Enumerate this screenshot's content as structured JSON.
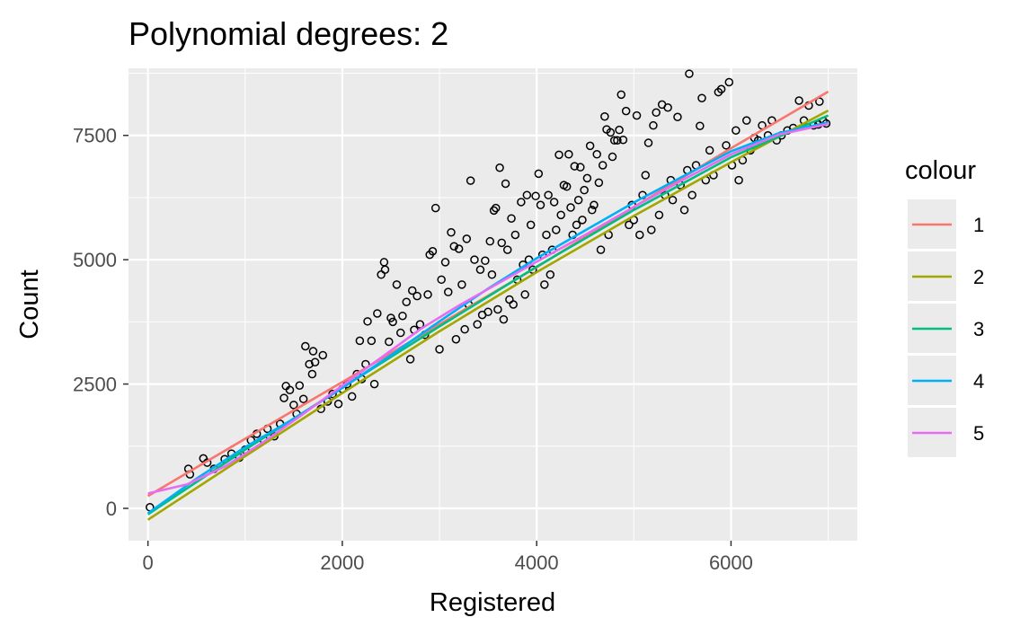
{
  "chart_data": {
    "type": "scatter",
    "title": "Polynomial degrees: 2",
    "xlabel": "Registered",
    "ylabel": "Count",
    "xlim": [
      -200,
      7300
    ],
    "ylim": [
      -650,
      8850
    ],
    "x_ticks": [
      0,
      2000,
      4000,
      6000
    ],
    "x_tick_labels": [
      "0",
      "2000",
      "4000",
      "6000"
    ],
    "y_ticks": [
      0,
      2500,
      5000,
      7500
    ],
    "y_tick_labels": [
      "0",
      "2500",
      "5000",
      "7500"
    ],
    "grid": true,
    "legend": {
      "title": "colour",
      "placement": "right"
    },
    "points": [
      [
        20,
        22
      ],
      [
        416,
        795
      ],
      [
        432,
        685
      ],
      [
        570,
        1005
      ],
      [
        610,
        920
      ],
      [
        680,
        795
      ],
      [
        790,
        990
      ],
      [
        860,
        1100
      ],
      [
        940,
        1020
      ],
      [
        1000,
        1180
      ],
      [
        1060,
        1370
      ],
      [
        1120,
        1500
      ],
      [
        1190,
        1380
      ],
      [
        1230,
        1600
      ],
      [
        1300,
        1450
      ],
      [
        1360,
        1700
      ],
      [
        1400,
        2220
      ],
      [
        1420,
        2460
      ],
      [
        1460,
        2380
      ],
      [
        1500,
        2080
      ],
      [
        1530,
        1900
      ],
      [
        1560,
        2470
      ],
      [
        1600,
        2200
      ],
      [
        1620,
        3260
      ],
      [
        1660,
        2900
      ],
      [
        1690,
        2700
      ],
      [
        1700,
        3160
      ],
      [
        1720,
        2940
      ],
      [
        1780,
        2000
      ],
      [
        1800,
        3080
      ],
      [
        1850,
        2150
      ],
      [
        1900,
        2300
      ],
      [
        1960,
        2100
      ],
      [
        2000,
        2400
      ],
      [
        2050,
        2500
      ],
      [
        2100,
        2250
      ],
      [
        2150,
        2700
      ],
      [
        2180,
        3370
      ],
      [
        2200,
        2600
      ],
      [
        2240,
        2900
      ],
      [
        2260,
        3760
      ],
      [
        2300,
        3370
      ],
      [
        2330,
        2500
      ],
      [
        2360,
        3920
      ],
      [
        2400,
        4700
      ],
      [
        2430,
        4950
      ],
      [
        2440,
        4800
      ],
      [
        2480,
        3350
      ],
      [
        2500,
        3830
      ],
      [
        2520,
        3750
      ],
      [
        2560,
        4500
      ],
      [
        2600,
        3530
      ],
      [
        2620,
        3870
      ],
      [
        2660,
        4150
      ],
      [
        2700,
        3000
      ],
      [
        2720,
        4380
      ],
      [
        2740,
        3590
      ],
      [
        2770,
        4270
      ],
      [
        2800,
        3700
      ],
      [
        2850,
        3490
      ],
      [
        2880,
        4300
      ],
      [
        2900,
        5100
      ],
      [
        2930,
        5170
      ],
      [
        2960,
        6040
      ],
      [
        3000,
        3200
      ],
      [
        3020,
        4600
      ],
      [
        3060,
        4950
      ],
      [
        3090,
        4350
      ],
      [
        3120,
        5550
      ],
      [
        3150,
        5270
      ],
      [
        3170,
        3400
      ],
      [
        3200,
        5220
      ],
      [
        3230,
        4500
      ],
      [
        3260,
        3600
      ],
      [
        3280,
        5420
      ],
      [
        3300,
        4100
      ],
      [
        3320,
        6590
      ],
      [
        3360,
        5000
      ],
      [
        3390,
        3700
      ],
      [
        3420,
        4800
      ],
      [
        3440,
        3890
      ],
      [
        3470,
        4980
      ],
      [
        3500,
        3950
      ],
      [
        3520,
        5370
      ],
      [
        3540,
        4700
      ],
      [
        3560,
        5990
      ],
      [
        3580,
        6040
      ],
      [
        3600,
        4000
      ],
      [
        3620,
        6850
      ],
      [
        3640,
        5340
      ],
      [
        3660,
        3800
      ],
      [
        3680,
        6530
      ],
      [
        3700,
        5200
      ],
      [
        3720,
        4200
      ],
      [
        3740,
        5830
      ],
      [
        3760,
        4100
      ],
      [
        3780,
        5500
      ],
      [
        3800,
        4600
      ],
      [
        3840,
        6160
      ],
      [
        3860,
        4900
      ],
      [
        3880,
        4300
      ],
      [
        3900,
        6300
      ],
      [
        3920,
        5000
      ],
      [
        3940,
        5700
      ],
      [
        3960,
        4800
      ],
      [
        3990,
        6280
      ],
      [
        4020,
        6730
      ],
      [
        4040,
        6100
      ],
      [
        4060,
        5100
      ],
      [
        4080,
        4500
      ],
      [
        4100,
        5500
      ],
      [
        4120,
        6300
      ],
      [
        4140,
        4700
      ],
      [
        4160,
        5200
      ],
      [
        4180,
        6160
      ],
      [
        4200,
        5600
      ],
      [
        4230,
        7110
      ],
      [
        4250,
        5900
      ],
      [
        4280,
        6500
      ],
      [
        4310,
        6470
      ],
      [
        4330,
        7120
      ],
      [
        4350,
        6050
      ],
      [
        4370,
        5500
      ],
      [
        4390,
        6880
      ],
      [
        4410,
        5700
      ],
      [
        4430,
        6200
      ],
      [
        4450,
        6860
      ],
      [
        4470,
        5800
      ],
      [
        4490,
        6400
      ],
      [
        4520,
        6640
      ],
      [
        4550,
        7290
      ],
      [
        4570,
        6000
      ],
      [
        4590,
        6100
      ],
      [
        4620,
        7120
      ],
      [
        4640,
        6550
      ],
      [
        4660,
        5200
      ],
      [
        4680,
        6900
      ],
      [
        4700,
        7880
      ],
      [
        4720,
        7620
      ],
      [
        4740,
        5500
      ],
      [
        4760,
        7560
      ],
      [
        4780,
        7070
      ],
      [
        4800,
        7400
      ],
      [
        4830,
        7400
      ],
      [
        4850,
        7610
      ],
      [
        4870,
        8320
      ],
      [
        4890,
        7410
      ],
      [
        4920,
        7990
      ],
      [
        4950,
        5700
      ],
      [
        4980,
        6100
      ],
      [
        5000,
        5800
      ],
      [
        5030,
        7900
      ],
      [
        5060,
        5500
      ],
      [
        5090,
        6300
      ],
      [
        5120,
        6700
      ],
      [
        5150,
        7350
      ],
      [
        5180,
        5600
      ],
      [
        5200,
        7700
      ],
      [
        5230,
        7960
      ],
      [
        5260,
        5900
      ],
      [
        5290,
        8120
      ],
      [
        5320,
        6300
      ],
      [
        5350,
        8060
      ],
      [
        5380,
        6600
      ],
      [
        5400,
        6200
      ],
      [
        5450,
        7870
      ],
      [
        5480,
        6500
      ],
      [
        5520,
        6000
      ],
      [
        5550,
        6800
      ],
      [
        5570,
        8740
      ],
      [
        5600,
        6300
      ],
      [
        5640,
        6900
      ],
      [
        5680,
        7690
      ],
      [
        5700,
        8250
      ],
      [
        5740,
        6600
      ],
      [
        5780,
        7200
      ],
      [
        5820,
        6700
      ],
      [
        5870,
        8370
      ],
      [
        5900,
        8430
      ],
      [
        5950,
        7300
      ],
      [
        5980,
        8570
      ],
      [
        6010,
        6900
      ],
      [
        6050,
        7600
      ],
      [
        6080,
        6600
      ],
      [
        6120,
        7000
      ],
      [
        6160,
        7800
      ],
      [
        6200,
        7200
      ],
      [
        6240,
        7450
      ],
      [
        6280,
        7400
      ],
      [
        6320,
        7700
      ],
      [
        6380,
        7500
      ],
      [
        6420,
        7800
      ],
      [
        6470,
        7400
      ],
      [
        6520,
        7500
      ],
      [
        6580,
        7600
      ],
      [
        6640,
        7650
      ],
      [
        6700,
        8200
      ],
      [
        6750,
        7800
      ],
      [
        6800,
        8100
      ],
      [
        6850,
        7700
      ],
      [
        6900,
        7720
      ],
      [
        6950,
        7790
      ],
      [
        6980,
        7740
      ],
      [
        6910,
        8180
      ]
    ],
    "series": [
      {
        "name": "1",
        "color": "#F8766D",
        "x": [
          0,
          1000,
          2000,
          3000,
          4000,
          5000,
          6000,
          7000
        ],
        "y": [
          250,
          1400,
          2540,
          3700,
          4850,
          6060,
          7240,
          8380
        ]
      },
      {
        "name": "2",
        "color": "#A3A500",
        "x": [
          0,
          1000,
          2000,
          3000,
          4000,
          5000,
          6000,
          7000
        ],
        "y": [
          -230,
          1050,
          2320,
          3560,
          4750,
          5880,
          6960,
          8000
        ]
      },
      {
        "name": "3",
        "color": "#00BF7D",
        "x": [
          0,
          1000,
          2000,
          3000,
          4000,
          5000,
          6000,
          7000
        ],
        "y": [
          -120,
          1180,
          2430,
          3660,
          4860,
          6000,
          7060,
          7900
        ]
      },
      {
        "name": "4",
        "color": "#00B0F6",
        "x": [
          0,
          500,
          1000,
          1500,
          2000,
          2500,
          3000,
          3500,
          4000,
          4500,
          5000,
          5500,
          6000,
          6500,
          7000
        ],
        "y": [
          -100,
          600,
          1230,
          1800,
          2420,
          3080,
          3760,
          4420,
          5030,
          5590,
          6150,
          6670,
          7180,
          7550,
          7760
        ]
      },
      {
        "name": "5",
        "color": "#E76BF3",
        "x": [
          0,
          400,
          800,
          1200,
          1600,
          2000,
          2400,
          2800,
          3200,
          3600,
          4000,
          4500,
          5000,
          5500,
          6000,
          6500,
          7000
        ],
        "y": [
          300,
          480,
          850,
          1350,
          1900,
          2470,
          3030,
          3600,
          4080,
          4520,
          4960,
          5500,
          6060,
          6600,
          7120,
          7520,
          7730
        ]
      }
    ]
  }
}
